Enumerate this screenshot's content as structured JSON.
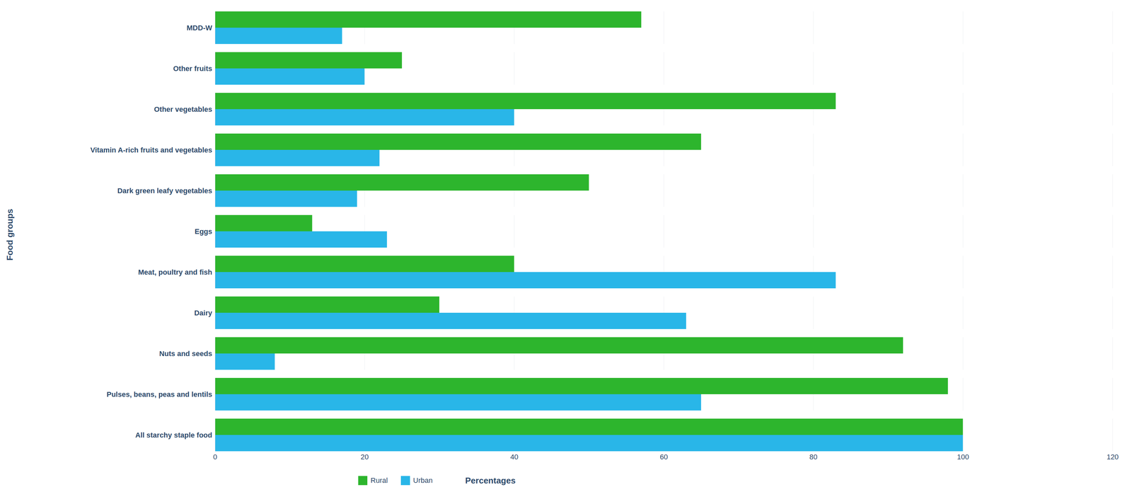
{
  "chart_data": {
    "type": "bar",
    "orientation": "horizontal",
    "categories": [
      "All starchy staple food",
      "Pulses, beans, peas and lentils",
      "Nuts and seeds",
      "Dairy",
      "Meat, poultry and fish",
      "Eggs",
      "Dark green leafy vegetables",
      "Vitamin A-rich fruits and vegetables",
      "Other vegetables",
      "Other fruits",
      "MDD-W"
    ],
    "series": [
      {
        "name": "Rural",
        "color": "#2db52d",
        "values": [
          100,
          98,
          92,
          30,
          40,
          13,
          50,
          65,
          83,
          25,
          57
        ]
      },
      {
        "name": "Urban",
        "color": "#29b6e8",
        "values": [
          100,
          65,
          8,
          63,
          83,
          23,
          19,
          22,
          40,
          20,
          17
        ]
      }
    ],
    "xlabel": "Percentages",
    "ylabel": "Food groups",
    "xlim": [
      0,
      120
    ],
    "xticks": [
      0,
      20,
      40,
      60,
      80,
      100,
      120
    ],
    "grid": true,
    "legend": "bottom"
  }
}
